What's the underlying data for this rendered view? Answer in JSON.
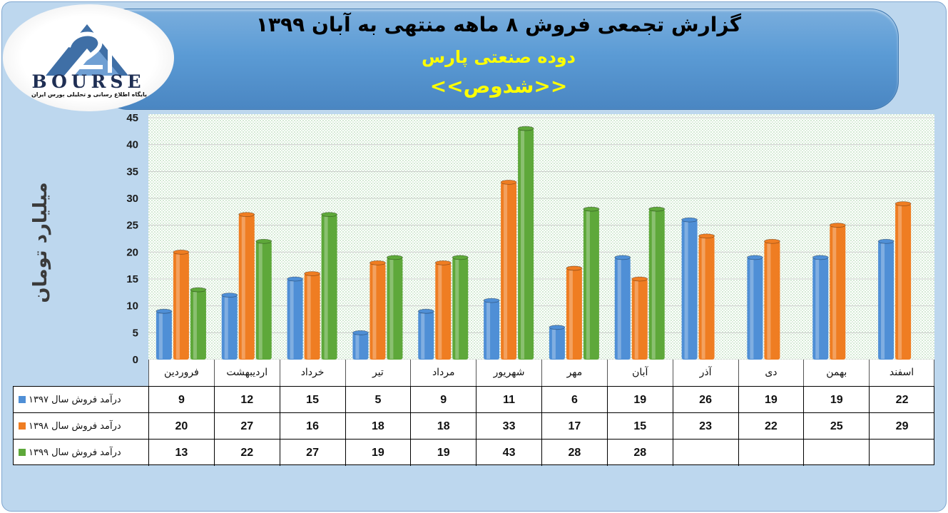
{
  "header": {
    "title": "گزارش تجمعی فروش ۸ ماهه منتهی به آبان ۱۳۹۹",
    "subtitle": "دوده صنعتی پارس",
    "ticker": "<<شدوص>>"
  },
  "logo": {
    "name": "BOURSE",
    "tagline": "پایگاه اطلاع رسانی و تحلیلی بورس ایران"
  },
  "chart_data": {
    "type": "bar",
    "title": "گزارش تجمعی فروش ۸ ماهه منتهی به آبان ۱۳۹۹",
    "ylabel": "میلیارد تومان",
    "ylim": [
      0,
      45
    ],
    "yticks": [
      0,
      5,
      10,
      15,
      20,
      25,
      30,
      35,
      40,
      45
    ],
    "grid": true,
    "legend": "data-table",
    "categories": [
      "فروردین",
      "اردیبهشت",
      "خرداد",
      "تیر",
      "مرداد",
      "شهریور",
      "مهر",
      "آبان",
      "آذر",
      "دی",
      "بهمن",
      "اسفند"
    ],
    "series": [
      {
        "name": "درآمد فروش سال ۱۳۹۷",
        "color": "#4f8fd6",
        "values": [
          9,
          12,
          15,
          5,
          9,
          11,
          6,
          19,
          26,
          19,
          19,
          22
        ]
      },
      {
        "name": "درآمد فروش سال ۱۳۹۸",
        "color": "#ef7d22",
        "values": [
          20,
          27,
          16,
          18,
          18,
          33,
          17,
          15,
          23,
          22,
          25,
          29
        ]
      },
      {
        "name": "درآمد فروش سال ۱۳۹۹",
        "color": "#5ea83a",
        "values": [
          13,
          22,
          27,
          19,
          19,
          43,
          28,
          28,
          null,
          null,
          null,
          null
        ]
      }
    ]
  }
}
